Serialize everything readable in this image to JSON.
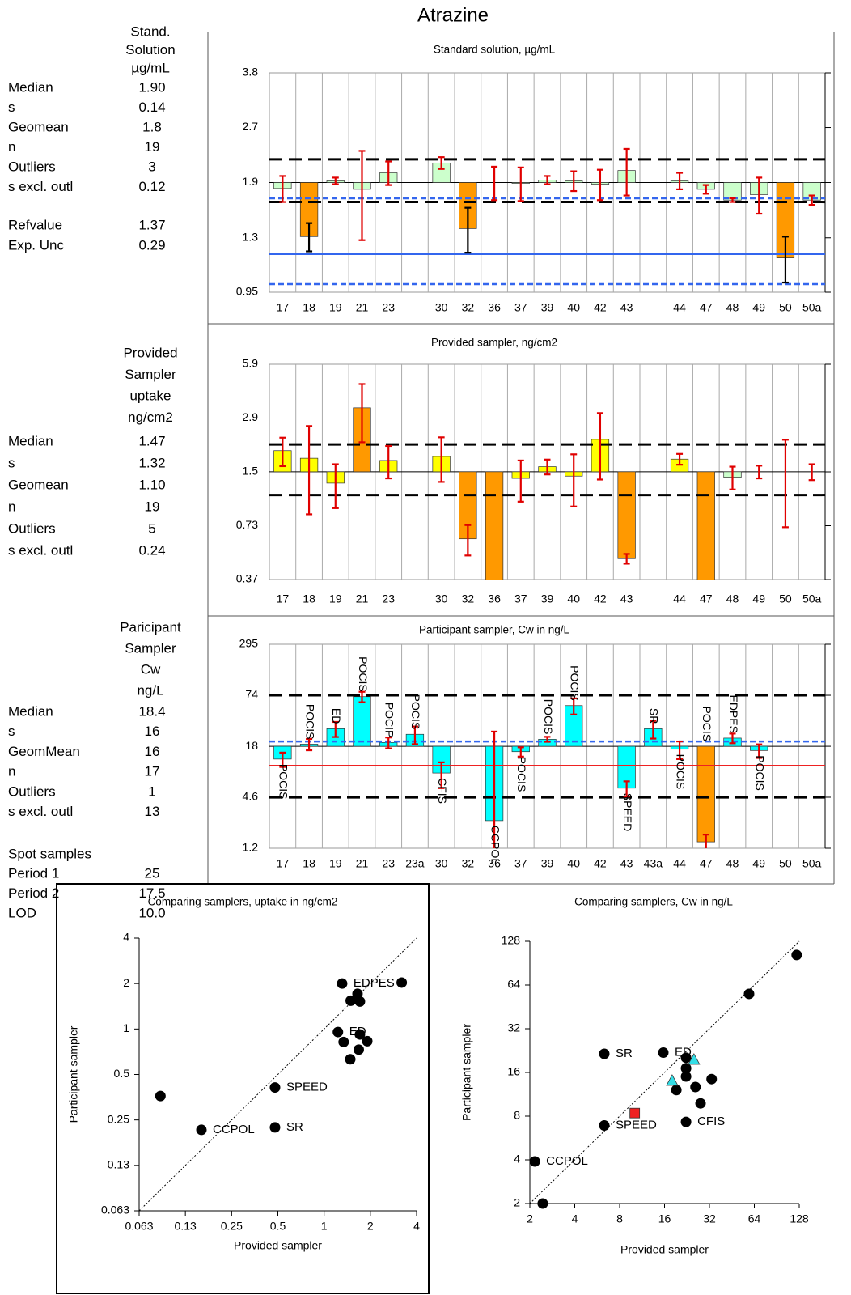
{
  "title": "Atrazine",
  "stats": [
    {
      "header": [
        "Stand.",
        "Solution",
        "µg/mL"
      ],
      "rows": [
        [
          "Median",
          "1.90"
        ],
        [
          "s",
          "0.14"
        ],
        [
          "Geomean",
          "1.8"
        ],
        [
          "n",
          "19"
        ],
        [
          "Outliers",
          "3"
        ],
        [
          "s excl. outl",
          "0.12"
        ]
      ],
      "section": {
        "rows": [
          [
            "Refvalue",
            "1.37"
          ],
          [
            "Exp. Unc",
            "0.29"
          ]
        ]
      }
    },
    {
      "header": [
        "Provided",
        "Sampler",
        "uptake",
        "ng/cm2"
      ],
      "rows": [
        [
          "Median",
          "1.47"
        ],
        [
          "s",
          "1.32"
        ],
        [
          "Geomean",
          "1.10"
        ],
        [
          "n",
          "19"
        ],
        [
          "Outliers",
          "5"
        ],
        [
          "s excl. outl",
          "0.24"
        ]
      ]
    },
    {
      "header": [
        "Paricipant",
        "Sampler",
        "Cw",
        "ng/L"
      ],
      "rows": [
        [
          "Median",
          "18.4"
        ],
        [
          "s",
          "16"
        ],
        [
          "GeomMean",
          "16"
        ],
        [
          "n",
          "17"
        ],
        [
          "Outliers",
          "1"
        ],
        [
          "s excl. outl",
          "13"
        ]
      ],
      "section": {
        "title": "Spot samples",
        "rows": [
          [
            "Period 1",
            "25"
          ],
          [
            "Period 2",
            "17.5"
          ],
          [
            "LOD",
            "10.0"
          ]
        ]
      }
    }
  ],
  "chart_data": [
    {
      "type": "bar",
      "title": "Standard solution, µg/mL",
      "log_scale": true,
      "ylim": [
        0.95,
        3.8
      ],
      "yticks": [
        0.95,
        {
          "value": 1.34,
          "label": "1.3"
        },
        1.9,
        {
          "value": 2.69,
          "label": "2.7"
        },
        3.8
      ],
      "base": 1.9,
      "categories": [
        "17",
        "18",
        "19",
        "21",
        "23",
        null,
        "30",
        "32",
        "36",
        "37",
        "39",
        "40",
        "42",
        "43",
        null,
        "44",
        "47",
        "48",
        "49",
        "50",
        "50a"
      ],
      "values": [
        1.83,
        1.35,
        1.92,
        1.82,
        2.02,
        null,
        2.15,
        1.42,
        1.9,
        1.89,
        1.93,
        1.92,
        1.88,
        2.05,
        null,
        1.92,
        1.82,
        1.7,
        1.76,
        1.18,
        1.7
      ],
      "errors": [
        0.15,
        0.12,
        0.04,
        0.5,
        0.15,
        null,
        0.08,
        0.2,
        0.2,
        0.2,
        0.05,
        0.12,
        0.18,
        0.3,
        null,
        0.1,
        0.05,
        0.02,
        0.2,
        0.17,
        0.05
      ],
      "colors": [
        "#ccffcc",
        "#ff9900",
        "#ccffcc",
        "#ccffcc",
        "#ccffcc",
        null,
        "#ccffcc",
        "#ff9900",
        "#ccffcc",
        "#ccffcc",
        "#ccffcc",
        "#ccffcc",
        "#ccffcc",
        "#ccffcc",
        null,
        "#ccffcc",
        "#ccffcc",
        "#ccffcc",
        "#ccffcc",
        "#ff9900",
        "#ccffcc"
      ],
      "error_colors": [
        "#e00000",
        "#000000",
        "#e00000",
        "#e00000",
        "#e00000",
        null,
        "#e00000",
        "#000000",
        "#e00000",
        "#e00000",
        "#e00000",
        "#e00000",
        "#e00000",
        "#e00000",
        null,
        "#e00000",
        "#e00000",
        "#e00000",
        "#e00000",
        "#000000",
        "#e00000"
      ],
      "ref_lines": [
        {
          "value": 2.2,
          "color": "#000000",
          "style": "dashed"
        },
        {
          "value": 1.68,
          "color": "#000000",
          "style": "dashed"
        },
        {
          "value": 1.72,
          "color": "#3366ee",
          "style": "dotted"
        },
        {
          "value": 1.0,
          "color": "#3366ee",
          "style": "dotted"
        },
        {
          "value": 1.21,
          "color": "#3366ee",
          "style": "solid"
        }
      ]
    },
    {
      "type": "bar",
      "title": "Provided sampler, ng/cm2",
      "log_scale": true,
      "ylim": [
        0.367,
        5.872
      ],
      "yticks": [
        {
          "value": 0.367,
          "label": "0.37"
        },
        {
          "value": 0.734,
          "label": "0.73"
        },
        {
          "value": 1.468,
          "label": "1.5"
        },
        {
          "value": 2.936,
          "label": "2.9"
        },
        {
          "value": 5.872,
          "label": "5.9"
        }
      ],
      "base": 1.47,
      "categories": [
        "17",
        "18",
        "19",
        "21",
        "23",
        null,
        "30",
        "32",
        "36",
        "37",
        "39",
        "40",
        "42",
        "43",
        null,
        "44",
        "47",
        "48",
        "49",
        "50",
        "50a"
      ],
      "values": [
        1.93,
        1.75,
        1.27,
        3.35,
        1.7,
        null,
        1.79,
        0.62,
        0.3,
        1.35,
        1.57,
        1.39,
        2.23,
        0.48,
        null,
        1.73,
        0.3,
        1.37,
        1.47,
        1.47,
        1.47
      ],
      "errors": [
        0.35,
        0.9,
        0.35,
        1.2,
        0.35,
        null,
        0.5,
        0.12,
        null,
        0.35,
        0.15,
        0.45,
        0.9,
        0.03,
        null,
        0.12,
        null,
        0.2,
        0.12,
        0.75,
        0.15
      ],
      "colors": [
        "#ffff00",
        "#ffff00",
        "#ffff00",
        "#ff9900",
        "#ffff00",
        null,
        "#ffff00",
        "#ff9900",
        "#ff9900",
        "#ffff00",
        "#ffff00",
        "#ffff00",
        "#ffff00",
        "#ff9900",
        null,
        "#ffff00",
        "#ff9900",
        "#ccffcc",
        "#ffff00",
        "#ffff00",
        "#ffff00"
      ],
      "error_colors": [
        "#e00000",
        "#e00000",
        "#e00000",
        "#e00000",
        "#e00000",
        null,
        "#e00000",
        "#e00000",
        null,
        "#e00000",
        "#e00000",
        "#e00000",
        "#e00000",
        "#e00000",
        null,
        "#e00000",
        null,
        "#e00000",
        "#e00000",
        "#e00000",
        "#e00000"
      ],
      "ref_lines": [
        {
          "value": 2.09,
          "color": "#000000",
          "style": "dashed"
        },
        {
          "value": 1.09,
          "color": "#000000",
          "style": "dashed"
        }
      ]
    },
    {
      "type": "bar",
      "title": "Participant sampler, Cw in ng/L",
      "log_scale": true,
      "ylim": [
        1.152,
        295
      ],
      "yticks": [
        {
          "value": 1.152,
          "label": "1.2"
        },
        {
          "value": 4.61,
          "label": "4.6"
        },
        {
          "value": 18.4,
          "label": "18"
        },
        {
          "value": 73.7,
          "label": "74"
        },
        295
      ],
      "base": 18.4,
      "categories": [
        "17",
        "18",
        "19",
        "21",
        "23",
        "23a",
        "30",
        "32",
        "36",
        "37",
        "39",
        "40",
        "42",
        "43",
        "43a",
        "44",
        "47",
        "48",
        "49",
        "50",
        "50a"
      ],
      "values": [
        13,
        19.5,
        29.7,
        71,
        20.4,
        25.5,
        8.9,
        null,
        2.44,
        15.9,
        22.3,
        55.7,
        null,
        5.9,
        29.7,
        17,
        1.37,
        23,
        16.4,
        null,
        null
      ],
      "errors": [
        2.5,
        3,
        6,
        10,
        3,
        6,
        3,
        null,
        25,
        2,
        1.5,
        12,
        null,
        1.2,
        7,
        4,
        0.3,
        3,
        3,
        null,
        null
      ],
      "colors": [
        "#00ffff",
        "#00ffff",
        "#00ffff",
        "#00ffff",
        "#00ffff",
        "#00ffff",
        "#00ffff",
        null,
        "#00ffff",
        "#00ffff",
        "#00ffff",
        "#00ffff",
        null,
        "#00ffff",
        "#00ffff",
        "#00ffff",
        "#ff9900",
        "#00ffff",
        "#00ffff",
        null,
        null
      ],
      "error_colors": [
        "#e00000",
        "#e00000",
        "#e00000",
        "#e00000",
        "#e00000",
        "#e00000",
        "#e00000",
        null,
        "#e00000",
        "#e00000",
        "#e00000",
        "#e00000",
        null,
        "#e00000",
        "#e00000",
        "#e00000",
        "#e00000",
        "#e00000",
        "#e00000",
        null,
        null
      ],
      "annotations": [
        "POCIS",
        "POCIS",
        "ED",
        "POCIS",
        "POCIP",
        "POCIS",
        "CFIS",
        null,
        "CCPOL",
        "POCIS",
        "POCIS",
        "POCIS",
        null,
        "SPEED",
        "SR",
        "POCIS",
        "POCIS",
        "EDPES",
        "POCIS",
        null,
        null
      ],
      "annotation_positions": [
        "below",
        "above",
        "above",
        "above",
        "above",
        "above",
        "below",
        null,
        "below",
        "below",
        "above",
        "above",
        null,
        "below",
        "above",
        "below",
        "above",
        "above",
        "below",
        null,
        null
      ],
      "ref_lines": [
        {
          "value": 73.7,
          "color": "#000000",
          "style": "dashed"
        },
        {
          "value": 4.6,
          "color": "#000000",
          "style": "dashed"
        },
        {
          "value": 21,
          "color": "#3366ee",
          "style": "dotted"
        },
        {
          "value": 11,
          "color": "#ee2222",
          "style": "thin"
        }
      ]
    },
    {
      "type": "scatter",
      "title": "Comparing samplers, uptake in ng/cm2",
      "log_scale": true,
      "xlabel": "Provided sampler",
      "ylabel": "Participant sampler",
      "xlim": [
        0.0625,
        4
      ],
      "ylim": [
        0.0625,
        4
      ],
      "xticks": [
        {
          "value": 0.0625,
          "label": "0.063"
        },
        {
          "value": 0.125,
          "label": "0.13"
        },
        0.25,
        0.5,
        1,
        2,
        4
      ],
      "yticks": [
        {
          "value": 0.0625,
          "label": "0.063"
        },
        {
          "value": 0.125,
          "label": "0.13"
        },
        0.25,
        0.5,
        1,
        2,
        4
      ],
      "series": [
        {
          "marker": "circle",
          "color": "#000000",
          "x": [
            0.086,
            0.159,
            0.479,
            0.479,
            1.31,
            1.65,
            1.49,
            1.71,
            1.23,
            1.34,
            1.71,
            1.68,
            1.48,
            1.91,
            3.2
          ],
          "y": [
            0.36,
            0.215,
            0.41,
            0.223,
            2.0,
            1.71,
            1.54,
            1.52,
            0.955,
            0.82,
            0.92,
            0.73,
            0.63,
            0.83,
            2.03
          ],
          "labels": [
            null,
            "CCPOL",
            "SPEED",
            "SR",
            "EDPES",
            null,
            null,
            null,
            "ED",
            null,
            null,
            null,
            null,
            null,
            null
          ]
        }
      ]
    },
    {
      "type": "scatter",
      "title": "Comparing samplers, Cw in ng/L",
      "log_scale": true,
      "xlabel": "Provided sampler",
      "ylabel": "Participant sampler",
      "xlim": [
        2,
        128
      ],
      "ylim": [
        2,
        128
      ],
      "xticks": [
        2,
        4,
        8,
        16,
        32,
        64,
        128
      ],
      "yticks": [
        2,
        4,
        8,
        16,
        32,
        64,
        128
      ],
      "series": [
        {
          "marker": "circle",
          "color": "#000000",
          "x": [
            2.16,
            2.44,
            6.31,
            6.31,
            15.7,
            22.3,
            22.3,
            22.3,
            19.2,
            25.8,
            33.1,
            27.9,
            22.3,
            59,
            123
          ],
          "y": [
            3.9,
            2.0,
            6.9,
            21.5,
            21.9,
            20.2,
            17.1,
            15.0,
            12.1,
            12.7,
            14.4,
            9.8,
            7.3,
            55.6,
            103
          ],
          "labels": [
            "CCPOL",
            null,
            "SPEED",
            "SR",
            "ED",
            null,
            null,
            null,
            null,
            null,
            null,
            null,
            "CFIS",
            null,
            null
          ]
        },
        {
          "marker": "triangle",
          "color": "#33dde6",
          "x": [
            18.0,
            25.2
          ],
          "y": [
            13.9,
            19.4
          ]
        },
        {
          "marker": "square",
          "color": "#ee2222",
          "x": [
            10.1
          ],
          "y": [
            8.4
          ]
        }
      ]
    }
  ]
}
